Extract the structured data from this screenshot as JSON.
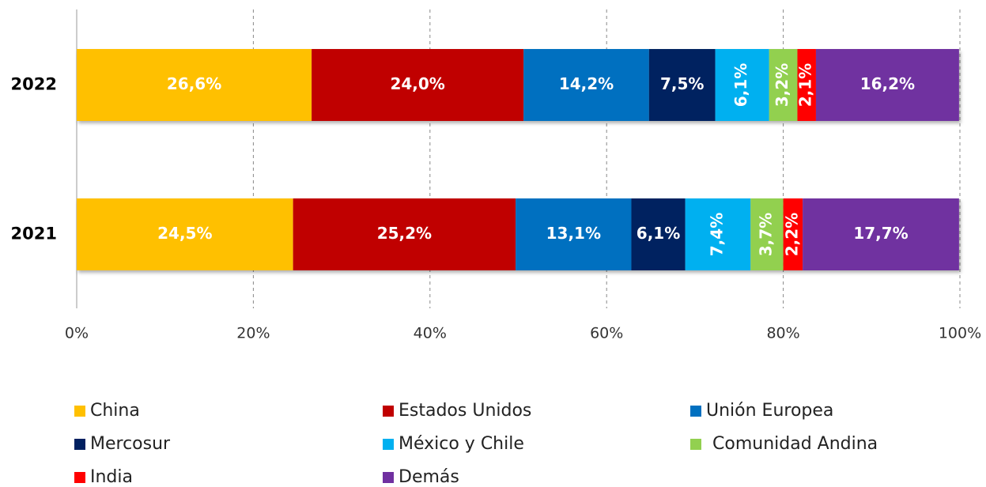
{
  "chart_data": {
    "type": "stacked-bar-horizontal",
    "categories": [
      "2022",
      "2021"
    ],
    "series": [
      {
        "name": "China",
        "color": "#FFC000",
        "values": [
          26.6,
          24.5
        ],
        "value_labels": [
          "26,6%",
          "24,5%"
        ]
      },
      {
        "name": "Estados Unidos",
        "color": "#C00000",
        "values": [
          24.0,
          25.2
        ],
        "value_labels": [
          "24,0%",
          "25,2%"
        ]
      },
      {
        "name": "Unión Europea",
        "color": "#0070C0",
        "values": [
          14.2,
          13.1
        ],
        "value_labels": [
          "14,2%",
          "13,1%"
        ]
      },
      {
        "name": "Mercosur",
        "color": "#002060",
        "values": [
          7.5,
          6.1
        ],
        "value_labels": [
          "7,5%",
          "6,1%"
        ]
      },
      {
        "name": "México y Chile",
        "color": "#00B0F0",
        "values": [
          6.1,
          7.4
        ],
        "value_labels": [
          "6,1%",
          "7,4%"
        ],
        "vertical_labels": true
      },
      {
        "name": "Comunidad Andina",
        "color": "#92D050",
        "values": [
          3.2,
          3.7
        ],
        "value_labels": [
          "3,2%",
          "3,7%"
        ],
        "vertical_labels": true
      },
      {
        "name": "India",
        "color": "#FF0000",
        "values": [
          2.1,
          2.2
        ],
        "value_labels": [
          "2,1%",
          "2,2%"
        ],
        "vertical_labels": true
      },
      {
        "name": "Demás",
        "color": "#7030A0",
        "values": [
          16.2,
          17.7
        ],
        "value_labels": [
          "16,2%",
          "17,7%"
        ]
      }
    ],
    "xlim": [
      0,
      100
    ],
    "xticks": [
      {
        "value": 0,
        "label": "0%"
      },
      {
        "value": 20,
        "label": "20%"
      },
      {
        "value": 40,
        "label": "40%"
      },
      {
        "value": 60,
        "label": "60%"
      },
      {
        "value": 80,
        "label": "80%"
      },
      {
        "value": 100,
        "label": "100%"
      }
    ],
    "grid": true,
    "legend": "bottom"
  }
}
